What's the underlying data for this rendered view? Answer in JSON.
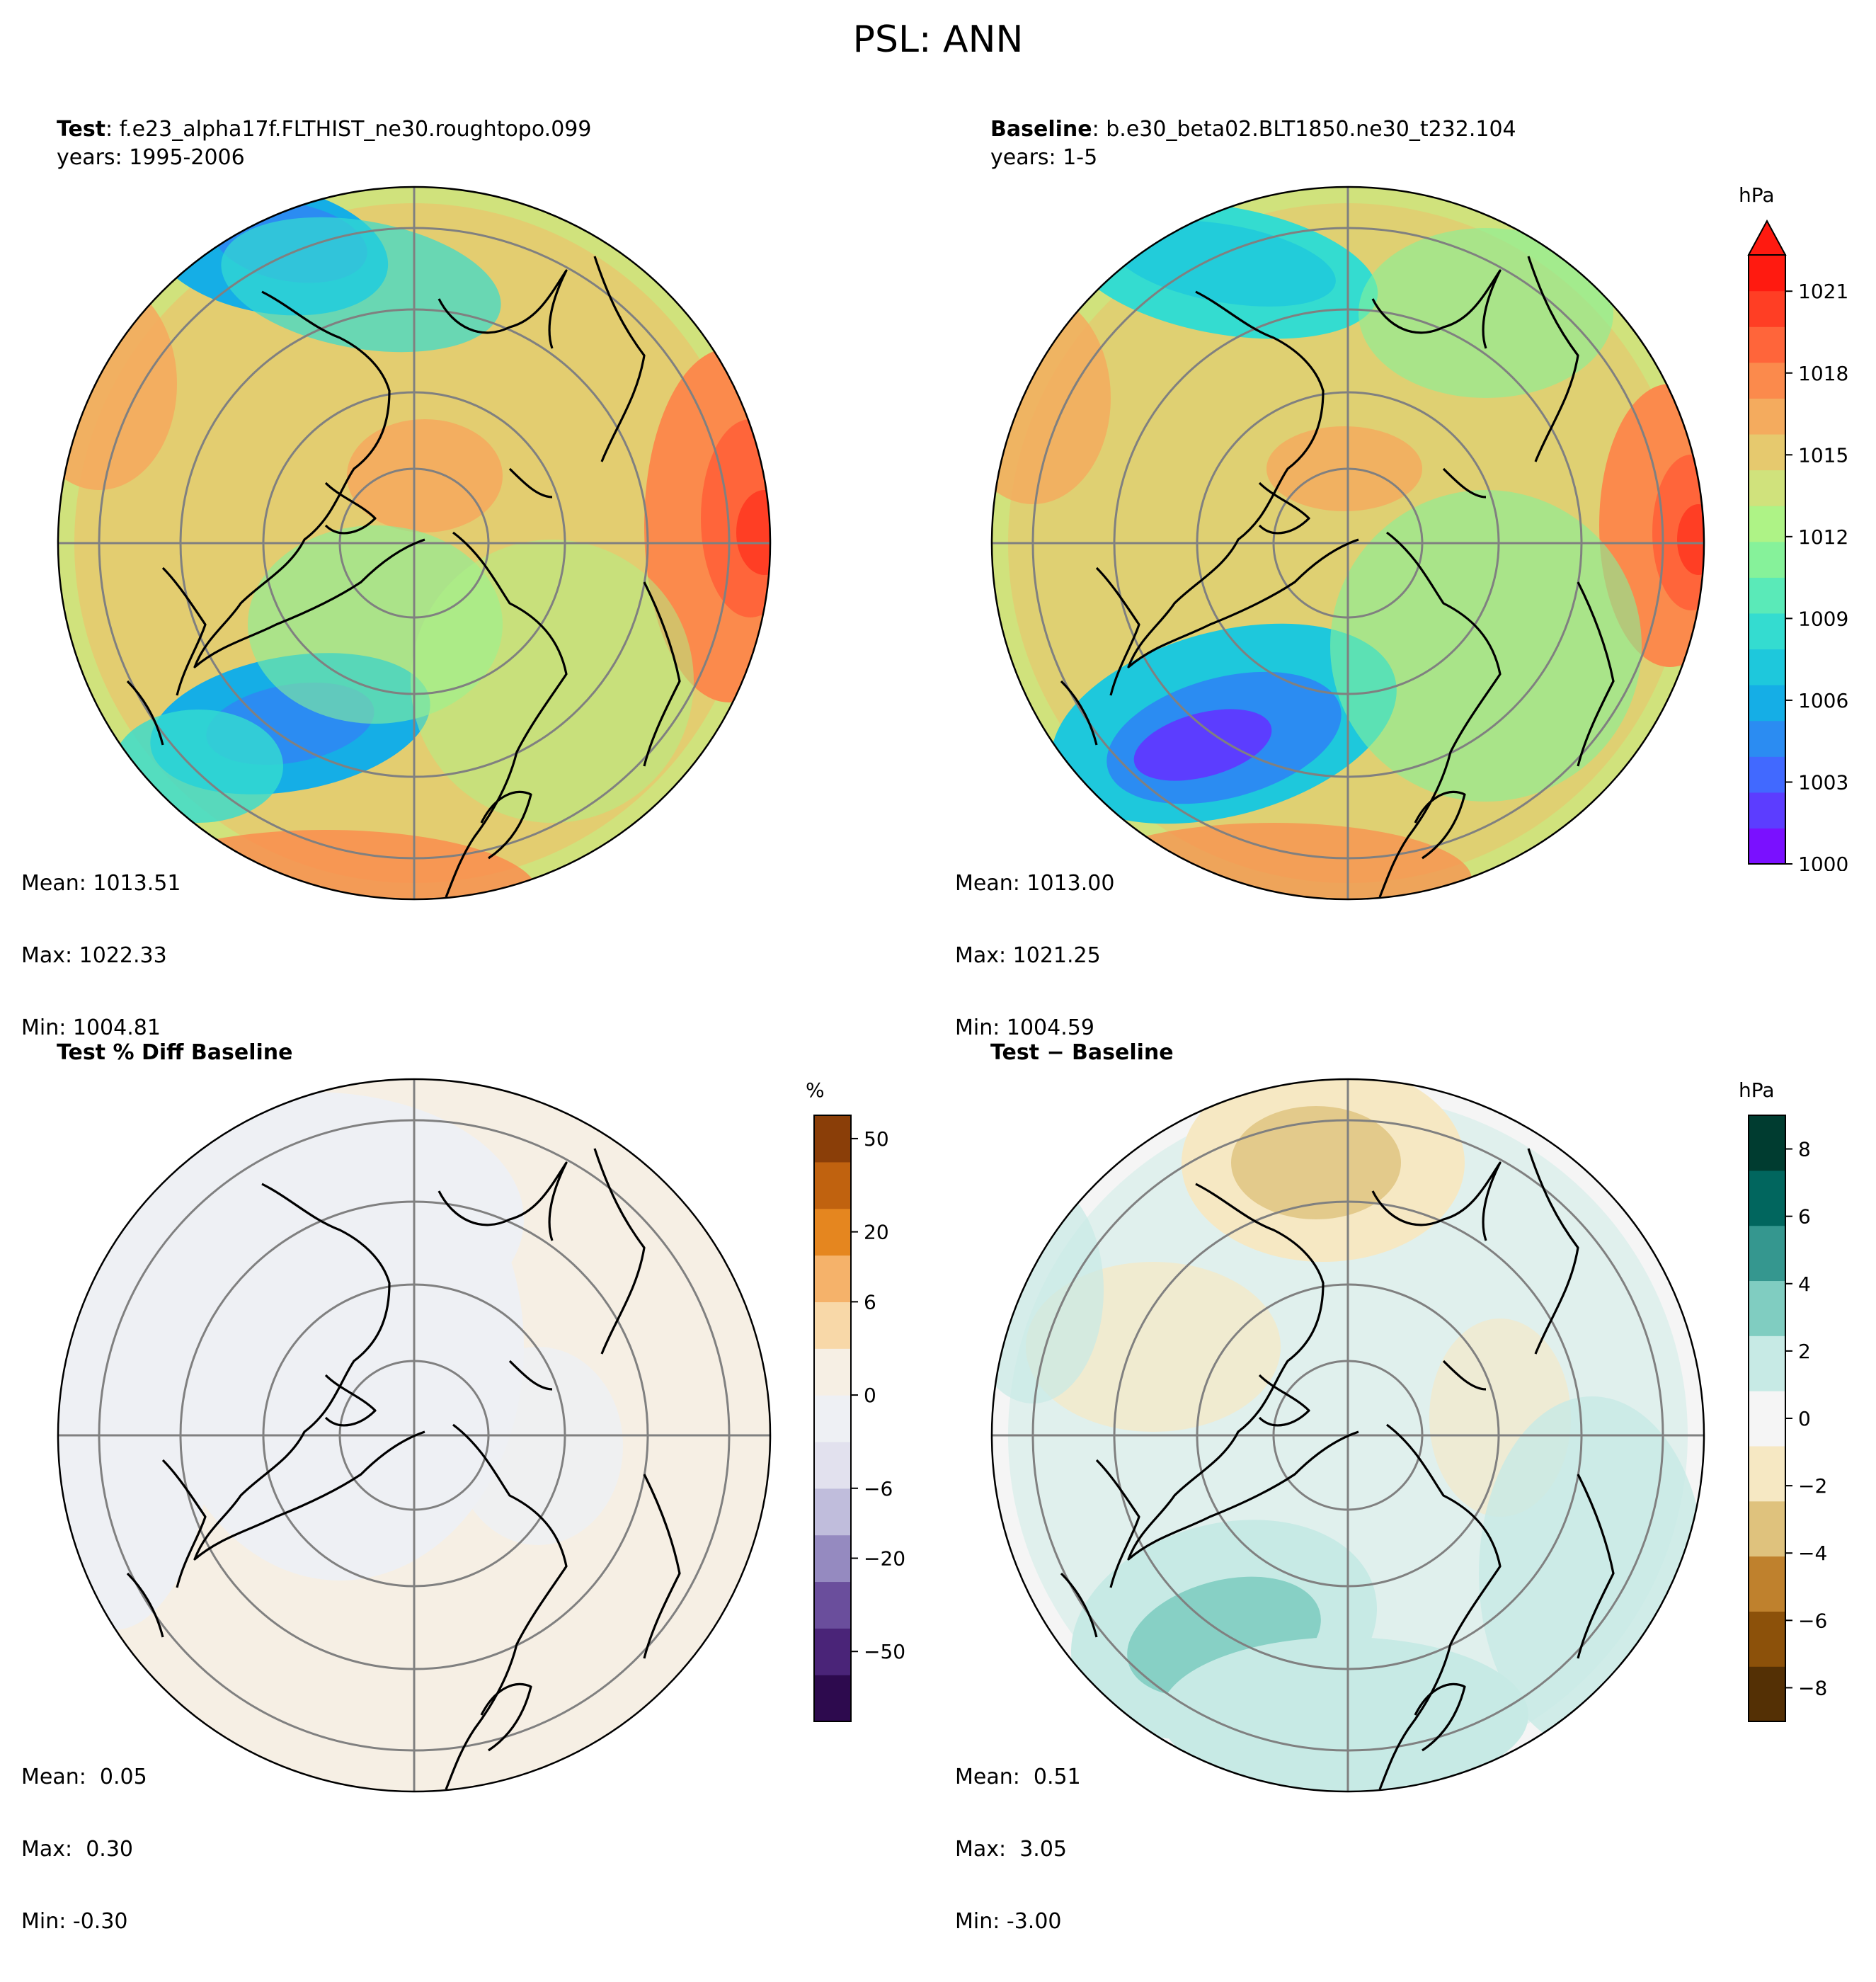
{
  "figure": {
    "title": "PSL: ANN"
  },
  "panels": {
    "test": {
      "label_bold": "Test",
      "label_rest": ": f.e23_alpha17f.FLTHIST_ne30.roughtopo.099",
      "years": "years: 1995-2006",
      "stats": {
        "mean": "Mean: 1013.51",
        "max": "Max: 1022.33",
        "min": "Min: 1004.81"
      }
    },
    "baseline": {
      "label_bold": "Baseline",
      "label_rest": ": b.e30_beta02.BLT1850.ne30_t232.104",
      "years": "years: 1-5",
      "stats": {
        "mean": "Mean: 1013.00",
        "max": "Max: 1021.25",
        "min": "Min: 1004.59"
      }
    },
    "pct_diff": {
      "label_bold": "Test % Diff Baseline",
      "stats": {
        "mean": "Mean:  0.05",
        "max": "Max:  0.30",
        "min": "Min: -0.30"
      }
    },
    "diff": {
      "label_bold": "Test − Baseline",
      "stats": {
        "mean": "Mean:  0.51",
        "max": "Max:  3.05",
        "min": "Min: -3.00"
      }
    }
  },
  "colorbars": {
    "main": {
      "unit": "hPa",
      "ticks": [
        "1000",
        "1003",
        "1006",
        "1009",
        "1012",
        "1015",
        "1018",
        "1021"
      ]
    },
    "pct": {
      "unit": "%",
      "ticks": [
        "−50",
        "−20",
        "−6",
        "0",
        "6",
        "20",
        "50"
      ]
    },
    "diff": {
      "unit": "hPa",
      "ticks": [
        "−8",
        "−6",
        "−4",
        "−2",
        "0",
        "2",
        "4",
        "6",
        "8"
      ]
    }
  },
  "colors": {
    "main_scale": [
      "#7a10ff",
      "#5c3dff",
      "#4169ff",
      "#2b8cf2",
      "#15aee6",
      "#1ec8dc",
      "#34dcd0",
      "#5aeab8",
      "#86f29a",
      "#aef386",
      "#d0e27c",
      "#e6c96e",
      "#f4ab5e",
      "#fb8a4c",
      "#ff653a",
      "#ff3e24",
      "#ff1a10"
    ],
    "pct_scale": [
      "#2d0a4e",
      "#4a2478",
      "#6a4e9c",
      "#958ac0",
      "#c0bddc",
      "#e2e1ee",
      "#eef0f4",
      "#f6efe4",
      "#f8d8a8",
      "#f5b26a",
      "#e5861f",
      "#c0620f",
      "#8a3e08"
    ],
    "diff_scale": [
      "#543005",
      "#8c510a",
      "#bf812d",
      "#dfc27d",
      "#f6e8c3",
      "#f5f5f5",
      "#c7eae5",
      "#80cdc1",
      "#35978f",
      "#01665e",
      "#003c30"
    ]
  },
  "chart_data": [
    {
      "type": "heatmap",
      "name": "test",
      "title": "Test: f.e23_alpha17f.FLTHIST_ne30.roughtopo.099",
      "subtitle": "years: 1995-2006",
      "projection": "north polar stereographic",
      "variable": "PSL",
      "units": "hPa",
      "vmin": 1000,
      "vmax": 1022.33,
      "mean": 1013.51,
      "max": 1022.33,
      "min": 1004.81
    },
    {
      "type": "heatmap",
      "name": "baseline",
      "title": "Baseline: b.e30_beta02.BLT1850.ne30_t232.104",
      "subtitle": "years: 1-5",
      "projection": "north polar stereographic",
      "variable": "PSL",
      "units": "hPa",
      "vmin": 1000,
      "vmax": 1021.25,
      "mean": 1013.0,
      "max": 1021.25,
      "min": 1004.59
    },
    {
      "type": "heatmap",
      "name": "pct_diff",
      "title": "Test % Diff Baseline",
      "projection": "north polar stereographic",
      "units": "%",
      "colorbar_range": [
        -60,
        60
      ],
      "mean": 0.05,
      "max": 0.3,
      "min": -0.3
    },
    {
      "type": "heatmap",
      "name": "diff",
      "title": "Test − Baseline",
      "projection": "north polar stereographic",
      "units": "hPa",
      "colorbar_range": [
        -9,
        9
      ],
      "mean": 0.51,
      "max": 3.05,
      "min": -3.0
    }
  ]
}
